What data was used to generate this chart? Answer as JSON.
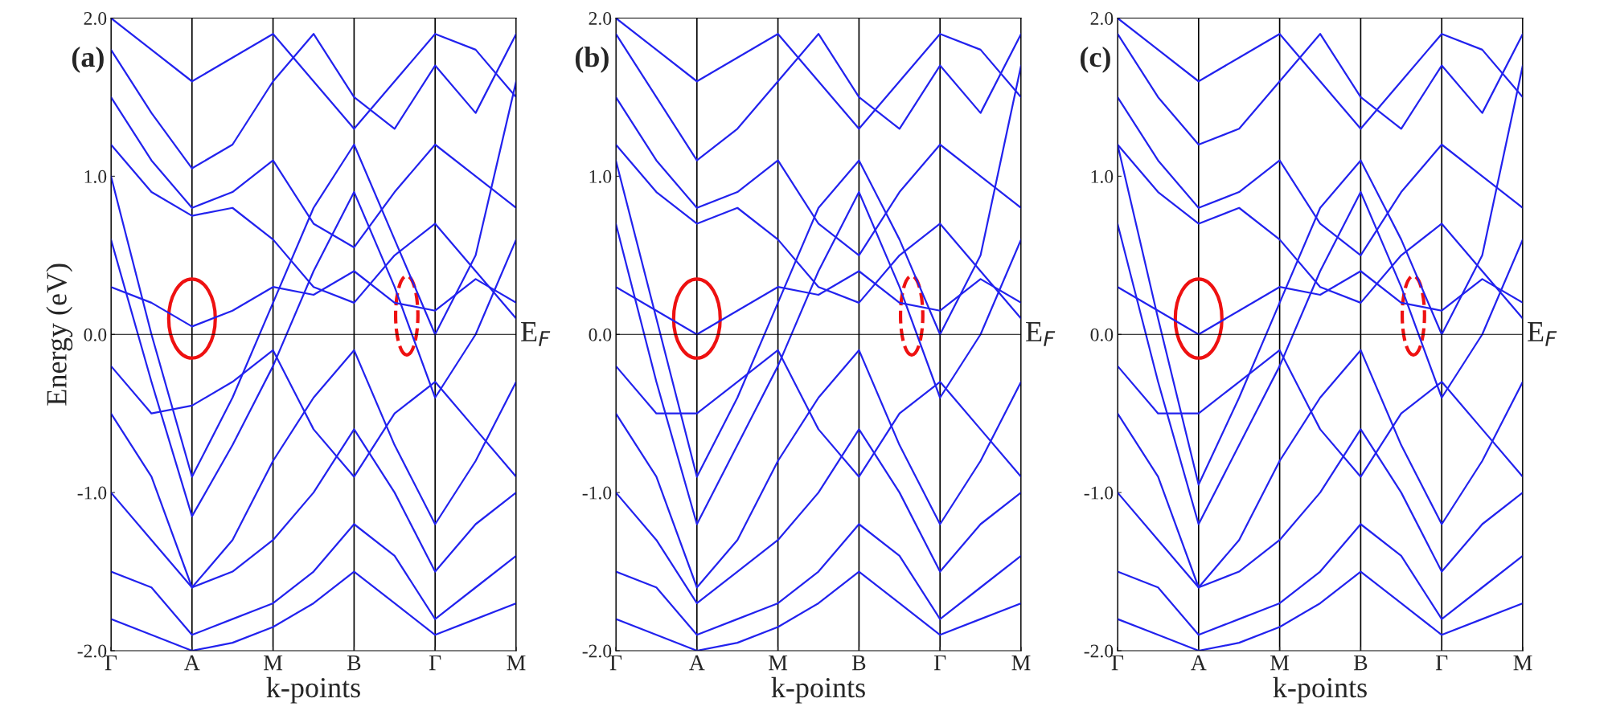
{
  "chart_data": [
    {
      "type": "line",
      "xlabel": "k-points",
      "ylabel": "Energy (eV)",
      "annotations": [
        "(a)"
      ],
      "categories": [
        "Γ",
        null,
        "A",
        null,
        "M",
        null,
        "B",
        null,
        "Γ",
        null,
        "M"
      ],
      "ylim": [
        -2.0,
        2.0
      ],
      "grid": "x",
      "yticks": [
        {
          "value": -2.0,
          "label": "-2.0"
        },
        {
          "value": -1.0,
          "label": "-1.0"
        },
        {
          "value": 0.0,
          "label": "0.0"
        },
        {
          "value": 1.0,
          "label": "1.0"
        },
        {
          "value": 2.0,
          "label": "2.0"
        }
      ],
      "ref_lines": [
        {
          "axis": "y",
          "value": 0.0,
          "label": "E$_{F}$",
          "color": "#000000"
        }
      ],
      "series": [
        {
          "color": "#2222ee",
          "values": [
            1.0,
            0.0,
            -0.9,
            -0.4,
            0.2,
            0.8,
            1.2,
            0.6,
            0.0,
            0.5,
            1.6
          ]
        },
        {
          "color": "#2222ee",
          "values": [
            0.6,
            -0.3,
            -1.15,
            -0.7,
            -0.2,
            0.4,
            0.9,
            0.3,
            -0.4,
            0.0,
            0.6
          ]
        },
        {
          "color": "#2222ee",
          "values": [
            1.8,
            1.4,
            1.05,
            1.2,
            1.6,
            1.9,
            1.5,
            1.3,
            1.7,
            1.4,
            1.9
          ]
        },
        {
          "color": "#2222ee",
          "values": [
            1.5,
            1.1,
            0.8,
            0.9,
            1.1,
            0.7,
            0.55,
            0.9,
            1.2,
            1.0,
            0.8
          ]
        },
        {
          "color": "#2222ee",
          "values": [
            0.3,
            0.2,
            0.05,
            0.15,
            0.3,
            0.25,
            0.4,
            0.2,
            0.15,
            0.35,
            0.2
          ]
        },
        {
          "color": "#2222ee",
          "values": [
            -0.5,
            -0.9,
            -1.6,
            -1.3,
            -0.8,
            -0.4,
            -0.1,
            -0.7,
            -1.2,
            -0.8,
            -0.3
          ]
        },
        {
          "color": "#2222ee",
          "values": [
            -1.0,
            -1.3,
            -1.6,
            -1.5,
            -1.3,
            -1.0,
            -0.6,
            -1.0,
            -1.5,
            -1.2,
            -1.0
          ]
        },
        {
          "color": "#2222ee",
          "values": [
            -1.5,
            -1.6,
            -1.9,
            -1.8,
            -1.7,
            -1.5,
            -1.2,
            -1.4,
            -1.8,
            -1.6,
            -1.4
          ]
        },
        {
          "color": "#2222ee",
          "values": [
            1.2,
            0.9,
            0.75,
            0.8,
            0.6,
            0.3,
            0.2,
            0.5,
            0.7,
            0.4,
            0.1
          ]
        },
        {
          "color": "#2222ee",
          "values": [
            -0.2,
            -0.5,
            -0.45,
            -0.3,
            -0.1,
            -0.6,
            -0.9,
            -0.5,
            -0.3,
            -0.6,
            -0.9
          ]
        },
        {
          "color": "#2222ee",
          "values": [
            2.0,
            1.8,
            1.6,
            1.75,
            1.9,
            1.6,
            1.3,
            1.6,
            1.9,
            1.8,
            1.5
          ]
        },
        {
          "color": "#2222ee",
          "values": [
            -1.8,
            -1.9,
            -2.0,
            -1.95,
            -1.85,
            -1.7,
            -1.5,
            -1.7,
            -1.9,
            -1.8,
            -1.7
          ]
        }
      ]
    },
    {
      "type": "line",
      "xlabel": "k-points",
      "annotations": [
        "(b)"
      ],
      "categories": [
        "Γ",
        null,
        "A",
        null,
        "M",
        null,
        "B",
        null,
        "Γ",
        null,
        "M"
      ],
      "ylim": [
        -2.0,
        2.0
      ],
      "grid": "x",
      "yticks": [
        {
          "value": -2.0,
          "label": "-2.0"
        },
        {
          "value": -1.0,
          "label": "-1.0"
        },
        {
          "value": 0.0,
          "label": "0.0"
        },
        {
          "value": 1.0,
          "label": "1.0"
        },
        {
          "value": 2.0,
          "label": "2.0"
        }
      ],
      "ref_lines": [
        {
          "axis": "y",
          "value": 0.0,
          "label": "E$_{F}$",
          "color": "#000000"
        }
      ],
      "series": [
        {
          "color": "#2222ee",
          "values": [
            1.1,
            0.1,
            -0.9,
            -0.4,
            0.2,
            0.8,
            1.1,
            0.6,
            0.0,
            0.5,
            1.7
          ]
        },
        {
          "color": "#2222ee",
          "values": [
            0.7,
            -0.3,
            -1.2,
            -0.7,
            -0.2,
            0.4,
            0.9,
            0.3,
            -0.4,
            0.0,
            0.6
          ]
        },
        {
          "color": "#2222ee",
          "values": [
            1.9,
            1.5,
            1.1,
            1.3,
            1.6,
            1.9,
            1.5,
            1.3,
            1.7,
            1.4,
            1.9
          ]
        },
        {
          "color": "#2222ee",
          "values": [
            1.5,
            1.1,
            0.8,
            0.9,
            1.1,
            0.7,
            0.5,
            0.9,
            1.2,
            1.0,
            0.8
          ]
        },
        {
          "color": "#2222ee",
          "values": [
            0.3,
            0.15,
            0.0,
            0.15,
            0.3,
            0.25,
            0.4,
            0.2,
            0.15,
            0.35,
            0.2
          ]
        },
        {
          "color": "#2222ee",
          "values": [
            -0.5,
            -0.9,
            -1.6,
            -1.3,
            -0.8,
            -0.4,
            -0.1,
            -0.7,
            -1.2,
            -0.8,
            -0.3
          ]
        },
        {
          "color": "#2222ee",
          "values": [
            -1.0,
            -1.3,
            -1.7,
            -1.5,
            -1.3,
            -1.0,
            -0.6,
            -1.0,
            -1.5,
            -1.2,
            -1.0
          ]
        },
        {
          "color": "#2222ee",
          "values": [
            -1.5,
            -1.6,
            -1.9,
            -1.8,
            -1.7,
            -1.5,
            -1.2,
            -1.4,
            -1.8,
            -1.6,
            -1.4
          ]
        },
        {
          "color": "#2222ee",
          "values": [
            1.2,
            0.9,
            0.7,
            0.8,
            0.6,
            0.3,
            0.2,
            0.5,
            0.7,
            0.4,
            0.1
          ]
        },
        {
          "color": "#2222ee",
          "values": [
            -0.2,
            -0.5,
            -0.5,
            -0.3,
            -0.1,
            -0.6,
            -0.9,
            -0.5,
            -0.3,
            -0.6,
            -0.9
          ]
        },
        {
          "color": "#2222ee",
          "values": [
            2.0,
            1.8,
            1.6,
            1.75,
            1.9,
            1.6,
            1.3,
            1.6,
            1.9,
            1.8,
            1.5
          ]
        },
        {
          "color": "#2222ee",
          "values": [
            -1.8,
            -1.9,
            -2.0,
            -1.95,
            -1.85,
            -1.7,
            -1.5,
            -1.7,
            -1.9,
            -1.8,
            -1.7
          ]
        }
      ]
    },
    {
      "type": "line",
      "xlabel": "k-points",
      "annotations": [
        "(c)"
      ],
      "categories": [
        "Γ",
        null,
        "A",
        null,
        "M",
        null,
        "B",
        null,
        "Γ",
        null,
        "M"
      ],
      "ylim": [
        -2.0,
        2.0
      ],
      "grid": "x",
      "yticks": [
        {
          "value": -2.0,
          "label": "-2.0"
        },
        {
          "value": -1.0,
          "label": "-1.0"
        },
        {
          "value": 0.0,
          "label": "0.0"
        },
        {
          "value": 1.0,
          "label": "1.0"
        },
        {
          "value": 2.0,
          "label": "2.0"
        }
      ],
      "ref_lines": [
        {
          "axis": "y",
          "value": 0.0,
          "label": "E$_{F}$",
          "color": "#000000"
        }
      ],
      "series": [
        {
          "color": "#2222ee",
          "values": [
            1.2,
            0.1,
            -0.95,
            -0.4,
            0.2,
            0.8,
            1.1,
            0.6,
            0.0,
            0.5,
            1.7
          ]
        },
        {
          "color": "#2222ee",
          "values": [
            0.7,
            -0.3,
            -1.2,
            -0.7,
            -0.2,
            0.4,
            0.9,
            0.3,
            -0.4,
            0.0,
            0.6
          ]
        },
        {
          "color": "#2222ee",
          "values": [
            1.9,
            1.5,
            1.2,
            1.3,
            1.6,
            1.9,
            1.5,
            1.3,
            1.7,
            1.4,
            1.9
          ]
        },
        {
          "color": "#2222ee",
          "values": [
            1.5,
            1.1,
            0.8,
            0.9,
            1.1,
            0.7,
            0.5,
            0.9,
            1.2,
            1.0,
            0.8
          ]
        },
        {
          "color": "#2222ee",
          "values": [
            0.3,
            0.15,
            0.0,
            0.15,
            0.3,
            0.25,
            0.4,
            0.2,
            0.15,
            0.35,
            0.2
          ]
        },
        {
          "color": "#2222ee",
          "values": [
            -0.5,
            -0.9,
            -1.6,
            -1.3,
            -0.8,
            -0.4,
            -0.1,
            -0.7,
            -1.2,
            -0.8,
            -0.3
          ]
        },
        {
          "color": "#2222ee",
          "values": [
            -1.0,
            -1.3,
            -1.6,
            -1.5,
            -1.3,
            -1.0,
            -0.6,
            -1.0,
            -1.5,
            -1.2,
            -1.0
          ]
        },
        {
          "color": "#2222ee",
          "values": [
            -1.5,
            -1.6,
            -1.9,
            -1.8,
            -1.7,
            -1.5,
            -1.2,
            -1.4,
            -1.8,
            -1.6,
            -1.4
          ]
        },
        {
          "color": "#2222ee",
          "values": [
            1.2,
            0.9,
            0.7,
            0.8,
            0.6,
            0.3,
            0.2,
            0.5,
            0.7,
            0.4,
            0.1
          ]
        },
        {
          "color": "#2222ee",
          "values": [
            -0.2,
            -0.5,
            -0.5,
            -0.3,
            -0.1,
            -0.6,
            -0.9,
            -0.5,
            -0.3,
            -0.6,
            -0.9
          ]
        },
        {
          "color": "#2222ee",
          "values": [
            2.0,
            1.8,
            1.6,
            1.75,
            1.9,
            1.6,
            1.3,
            1.6,
            1.9,
            1.8,
            1.5
          ]
        },
        {
          "color": "#2222ee",
          "values": [
            -1.8,
            -1.9,
            -2.0,
            -1.95,
            -1.85,
            -1.7,
            -1.5,
            -1.7,
            -1.9,
            -1.8,
            -1.7
          ]
        }
      ]
    }
  ]
}
